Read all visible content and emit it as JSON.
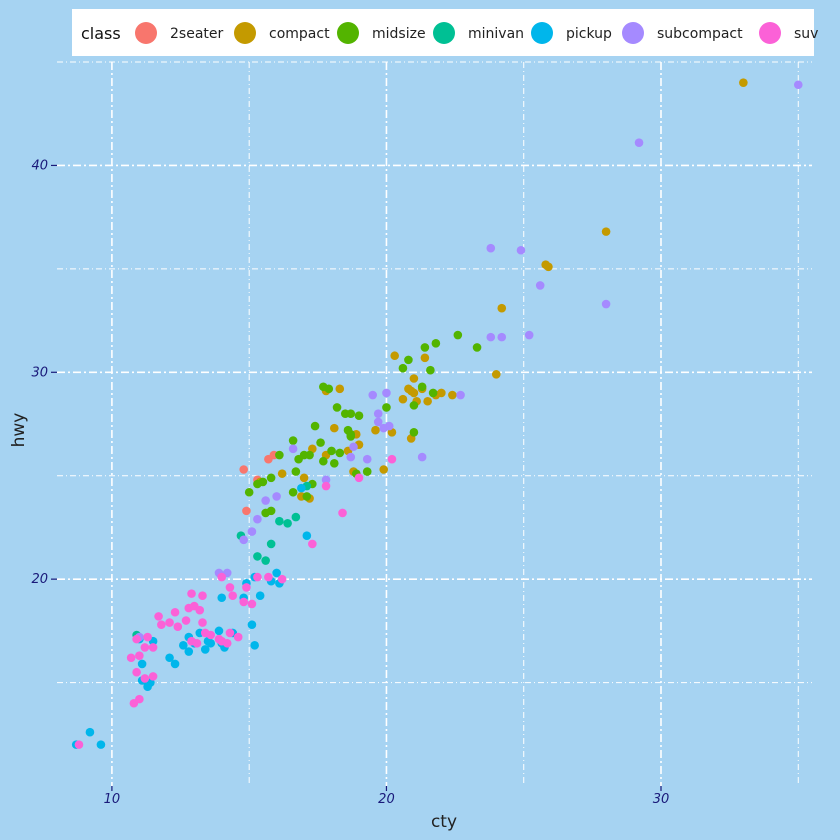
{
  "chart_data": {
    "type": "scatter",
    "xlabel": "cty",
    "ylabel": "hwy",
    "xlim": [
      8.0,
      35.5
    ],
    "ylim": [
      10.0,
      45.0
    ],
    "xticks": [
      10,
      20,
      30
    ],
    "yticks": [
      20,
      30,
      40
    ],
    "grid": true,
    "legend": {
      "title": "class",
      "position": "top"
    },
    "series": [
      {
        "name": "2seater",
        "color": "#f8766d",
        "points": [
          [
            14.8,
            25.3
          ],
          [
            15.7,
            25.8
          ],
          [
            14.9,
            23.3
          ],
          [
            15.3,
            24.8
          ],
          [
            15.9,
            26.0
          ]
        ]
      },
      {
        "name": "compact",
        "color": "#c49a00",
        "points": [
          [
            33.0,
            44.0
          ],
          [
            28.0,
            36.8
          ],
          [
            25.8,
            35.2
          ],
          [
            25.9,
            35.1
          ],
          [
            24.2,
            33.1
          ],
          [
            24.0,
            29.9
          ],
          [
            22.0,
            29.0
          ],
          [
            21.0,
            29.0
          ],
          [
            20.6,
            28.7
          ],
          [
            21.8,
            28.9
          ],
          [
            22.4,
            28.9
          ],
          [
            20.9,
            29.1
          ],
          [
            21.0,
            29.7
          ],
          [
            21.4,
            30.7
          ],
          [
            20.3,
            30.8
          ],
          [
            20.8,
            29.2
          ],
          [
            21.3,
            29.2
          ],
          [
            21.1,
            28.6
          ],
          [
            18.9,
            27.0
          ],
          [
            18.1,
            27.3
          ],
          [
            17.8,
            26.0
          ],
          [
            18.8,
            25.2
          ],
          [
            18.6,
            26.2
          ],
          [
            19.0,
            26.5
          ],
          [
            17.0,
            24.9
          ],
          [
            16.2,
            25.1
          ],
          [
            15.4,
            24.7
          ],
          [
            16.9,
            24.0
          ],
          [
            17.2,
            23.9
          ],
          [
            19.9,
            25.3
          ],
          [
            20.2,
            27.1
          ],
          [
            19.6,
            27.2
          ],
          [
            20.9,
            26.8
          ],
          [
            21.5,
            28.6
          ],
          [
            17.3,
            26.3
          ],
          [
            18.3,
            29.2
          ],
          [
            17.8,
            29.1
          ]
        ]
      },
      {
        "name": "midsize",
        "color": "#53b400",
        "points": [
          [
            21.8,
            31.4
          ],
          [
            21.4,
            31.2
          ],
          [
            22.6,
            31.8
          ],
          [
            23.3,
            31.2
          ],
          [
            20.6,
            30.2
          ],
          [
            20.8,
            30.6
          ],
          [
            21.6,
            30.1
          ],
          [
            21.3,
            29.3
          ],
          [
            21.0,
            28.4
          ],
          [
            17.9,
            29.2
          ],
          [
            18.2,
            28.3
          ],
          [
            18.5,
            28.0
          ],
          [
            18.7,
            28.0
          ],
          [
            19.0,
            27.9
          ],
          [
            17.4,
            27.4
          ],
          [
            18.6,
            27.2
          ],
          [
            16.6,
            26.7
          ],
          [
            17.6,
            26.6
          ],
          [
            17.2,
            26.0
          ],
          [
            17.0,
            26.0
          ],
          [
            16.1,
            26.0
          ],
          [
            16.8,
            25.8
          ],
          [
            18.0,
            26.2
          ],
          [
            17.7,
            25.7
          ],
          [
            18.1,
            25.6
          ],
          [
            17.3,
            24.6
          ],
          [
            17.1,
            24.0
          ],
          [
            16.7,
            25.2
          ],
          [
            18.3,
            26.1
          ],
          [
            18.9,
            25.1
          ],
          [
            19.3,
            25.2
          ],
          [
            15.5,
            24.7
          ],
          [
            15.8,
            24.9
          ],
          [
            15.3,
            24.6
          ],
          [
            16.6,
            24.2
          ],
          [
            15.0,
            24.2
          ],
          [
            15.8,
            23.3
          ],
          [
            15.6,
            23.2
          ],
          [
            18.7,
            26.9
          ],
          [
            20.0,
            28.3
          ],
          [
            21.0,
            27.1
          ],
          [
            21.7,
            29.0
          ],
          [
            18.7,
            27.0
          ],
          [
            17.7,
            29.3
          ]
        ]
      },
      {
        "name": "minivan",
        "color": "#00c094",
        "points": [
          [
            10.9,
            17.3
          ],
          [
            11.2,
            15.1
          ],
          [
            14.7,
            22.1
          ],
          [
            15.3,
            21.1
          ],
          [
            15.6,
            20.9
          ],
          [
            15.8,
            21.7
          ],
          [
            16.1,
            22.8
          ],
          [
            16.4,
            22.7
          ],
          [
            17.1,
            24.5
          ],
          [
            16.7,
            23.0
          ]
        ]
      },
      {
        "name": "pickup",
        "color": "#00b6eb",
        "points": [
          [
            8.7,
            12.0
          ],
          [
            9.2,
            12.6
          ],
          [
            9.6,
            12.0
          ],
          [
            11.1,
            15.1
          ],
          [
            11.3,
            14.8
          ],
          [
            11.4,
            15.0
          ],
          [
            11.1,
            15.9
          ],
          [
            11.5,
            17.0
          ],
          [
            12.1,
            16.2
          ],
          [
            12.3,
            15.9
          ],
          [
            12.6,
            16.8
          ],
          [
            12.8,
            16.5
          ],
          [
            13.0,
            16.9
          ],
          [
            13.2,
            17.4
          ],
          [
            13.4,
            16.6
          ],
          [
            13.6,
            16.9
          ],
          [
            13.9,
            17.5
          ],
          [
            14.0,
            16.9
          ],
          [
            14.1,
            16.7
          ],
          [
            14.4,
            17.4
          ],
          [
            14.8,
            19.1
          ],
          [
            14.9,
            19.8
          ],
          [
            15.2,
            20.1
          ],
          [
            15.1,
            17.8
          ],
          [
            15.2,
            16.8
          ],
          [
            15.4,
            19.2
          ],
          [
            15.8,
            19.9
          ],
          [
            16.0,
            20.3
          ],
          [
            16.1,
            19.8
          ],
          [
            14.0,
            19.1
          ],
          [
            16.9,
            24.4
          ],
          [
            17.1,
            22.1
          ],
          [
            11.0,
            17.1
          ],
          [
            12.8,
            17.2
          ],
          [
            13.5,
            17.0
          ]
        ]
      },
      {
        "name": "subcompact",
        "color": "#a58aff",
        "points": [
          [
            35.0,
            43.9
          ],
          [
            29.2,
            41.1
          ],
          [
            28.0,
            33.3
          ],
          [
            25.6,
            34.2
          ],
          [
            23.8,
            36.0
          ],
          [
            24.9,
            35.9
          ],
          [
            25.2,
            31.8
          ],
          [
            24.2,
            31.7
          ],
          [
            23.8,
            31.7
          ],
          [
            22.7,
            28.9
          ],
          [
            21.3,
            25.9
          ],
          [
            20.0,
            29.0
          ],
          [
            19.5,
            28.9
          ],
          [
            19.7,
            28.0
          ],
          [
            19.9,
            27.3
          ],
          [
            19.7,
            27.6
          ],
          [
            18.7,
            25.9
          ],
          [
            18.8,
            26.4
          ],
          [
            19.3,
            25.8
          ],
          [
            17.8,
            24.8
          ],
          [
            16.6,
            26.3
          ],
          [
            16.0,
            24.0
          ],
          [
            15.6,
            23.8
          ],
          [
            15.3,
            22.9
          ],
          [
            14.8,
            21.9
          ],
          [
            15.1,
            22.3
          ],
          [
            13.9,
            20.3
          ],
          [
            14.2,
            20.3
          ],
          [
            11.0,
            17.2
          ],
          [
            20.1,
            27.4
          ]
        ]
      },
      {
        "name": "suv",
        "color": "#fb61d7",
        "points": [
          [
            8.8,
            12.0
          ],
          [
            10.8,
            14.0
          ],
          [
            11.0,
            14.2
          ],
          [
            10.9,
            15.5
          ],
          [
            11.2,
            15.2
          ],
          [
            11.5,
            15.3
          ],
          [
            10.7,
            16.2
          ],
          [
            11.0,
            16.3
          ],
          [
            10.9,
            17.1
          ],
          [
            11.3,
            17.2
          ],
          [
            11.2,
            16.7
          ],
          [
            11.5,
            16.7
          ],
          [
            11.8,
            17.8
          ],
          [
            12.1,
            17.9
          ],
          [
            11.7,
            18.2
          ],
          [
            12.3,
            18.4
          ],
          [
            12.7,
            18.0
          ],
          [
            12.8,
            18.6
          ],
          [
            13.0,
            18.7
          ],
          [
            12.9,
            19.3
          ],
          [
            13.3,
            19.2
          ],
          [
            13.2,
            18.5
          ],
          [
            13.3,
            17.9
          ],
          [
            13.6,
            17.3
          ],
          [
            13.9,
            17.1
          ],
          [
            14.3,
            17.4
          ],
          [
            14.2,
            16.9
          ],
          [
            14.6,
            17.2
          ],
          [
            14.0,
            20.1
          ],
          [
            14.3,
            19.6
          ],
          [
            14.4,
            19.2
          ],
          [
            14.8,
            18.9
          ],
          [
            14.9,
            19.6
          ],
          [
            15.3,
            20.1
          ],
          [
            15.7,
            20.1
          ],
          [
            16.2,
            20.0
          ],
          [
            18.4,
            23.2
          ],
          [
            17.3,
            21.7
          ],
          [
            17.8,
            24.5
          ],
          [
            19.0,
            24.9
          ],
          [
            20.2,
            25.8
          ],
          [
            12.4,
            17.7
          ],
          [
            12.9,
            17.0
          ],
          [
            13.1,
            16.9
          ],
          [
            14.0,
            17.0
          ],
          [
            15.1,
            18.8
          ],
          [
            13.4,
            17.4
          ]
        ]
      }
    ]
  }
}
